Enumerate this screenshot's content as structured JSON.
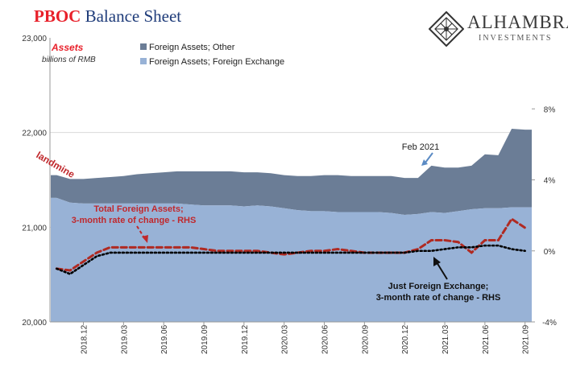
{
  "title": {
    "part1": "PBOC",
    "part2": "Balance Sheet"
  },
  "logo": {
    "brand": "ALHAMBRA",
    "subtitle": "INVESTMENTS",
    "icon": "diamond-lattice-icon"
  },
  "assets_title": "Assets",
  "units_label": "billions of RMB",
  "colors": {
    "foreign_other": "#6b7d96",
    "foreign_exchange": "#98b2d6",
    "total_rate": "#b02a22",
    "fx_rate": "#000000",
    "annotation_red": "#c0282c",
    "annotation_black": "#111111",
    "feb_arrow": "#5b8bc4"
  },
  "legend": [
    {
      "label": "Foreign Assets; Other",
      "color": "#6b7d96"
    },
    {
      "label": "Foreign Assets; Foreign Exchange",
      "color": "#98b2d6"
    }
  ],
  "annotations": {
    "landmine": "landmine",
    "feb": "Feb 2021",
    "total_line1": "Total Foreign Assets;",
    "total_line2": "3-month rate of change - RHS",
    "fx_line1": "Just Foreign Exchange;",
    "fx_line2": "3-month rate of change - RHS"
  },
  "chart_data": {
    "type": "area",
    "x_tick_labels": [
      "2018.12",
      "2019.03",
      "2019.06",
      "2019.09",
      "2019.12",
      "2020.03",
      "2020.06",
      "2020.09",
      "2020.12",
      "2021.03",
      "2021.06",
      "2021.09"
    ],
    "x": [
      "2018.10",
      "2018.11",
      "2018.12",
      "2019.01",
      "2019.02",
      "2019.03",
      "2019.04",
      "2019.05",
      "2019.06",
      "2019.07",
      "2019.08",
      "2019.09",
      "2019.10",
      "2019.11",
      "2019.12",
      "2020.01",
      "2020.02",
      "2020.03",
      "2020.04",
      "2020.05",
      "2020.06",
      "2020.07",
      "2020.08",
      "2020.09",
      "2020.10",
      "2020.11",
      "2020.12",
      "2021.01",
      "2021.02",
      "2021.03",
      "2021.04",
      "2021.05",
      "2021.06",
      "2021.07",
      "2021.08",
      "2021.09"
    ],
    "left_axis": {
      "ticks": [
        "20,000",
        "21,000",
        "22,000",
        "23,000"
      ],
      "ylim": [
        20000,
        23000
      ]
    },
    "right_axis": {
      "ticks": [
        "-4%",
        "0%",
        "4%",
        "8%"
      ],
      "ylim": [
        -4,
        12
      ]
    },
    "series": [
      {
        "name": "Foreign Assets; Foreign Exchange",
        "axis": "left",
        "stacked": true,
        "values": [
          21310,
          21260,
          21250,
          21250,
          21250,
          21250,
          21250,
          21250,
          21250,
          21250,
          21240,
          21230,
          21230,
          21230,
          21220,
          21230,
          21220,
          21200,
          21180,
          21170,
          21170,
          21160,
          21160,
          21160,
          21160,
          21150,
          21130,
          21140,
          21160,
          21150,
          21170,
          21190,
          21200,
          21200,
          21210,
          21210
        ]
      },
      {
        "name": "Foreign Assets; Other",
        "axis": "left",
        "stacked": true,
        "values": [
          240,
          250,
          260,
          270,
          280,
          290,
          310,
          320,
          330,
          340,
          350,
          360,
          360,
          360,
          360,
          350,
          350,
          350,
          360,
          370,
          380,
          390,
          380,
          380,
          380,
          390,
          390,
          380,
          490,
          480,
          460,
          460,
          570,
          560,
          830,
          820
        ]
      },
      {
        "name": "Total Foreign Assets; 3-month rate of change - RHS",
        "axis": "right",
        "style": "dashed",
        "values": [
          -1.0,
          -1.1,
          -0.6,
          -0.1,
          0.2,
          0.2,
          0.2,
          0.2,
          0.2,
          0.2,
          0.2,
          0.1,
          0.0,
          0.0,
          0.0,
          0.0,
          -0.1,
          -0.2,
          -0.1,
          0.0,
          0.0,
          0.1,
          0.0,
          -0.1,
          -0.1,
          -0.1,
          -0.1,
          0.1,
          0.6,
          0.6,
          0.5,
          -0.1,
          0.6,
          0.6,
          1.8,
          1.3
        ]
      },
      {
        "name": "Just Foreign Exchange; 3-month rate of change - RHS",
        "axis": "right",
        "style": "dotted",
        "values": [
          -1.0,
          -1.3,
          -0.8,
          -0.3,
          -0.1,
          -0.1,
          -0.1,
          -0.1,
          -0.1,
          -0.1,
          -0.1,
          -0.1,
          -0.1,
          -0.1,
          -0.1,
          -0.1,
          -0.1,
          -0.1,
          -0.1,
          -0.1,
          -0.1,
          -0.1,
          -0.1,
          -0.1,
          -0.1,
          -0.1,
          -0.1,
          0.0,
          0.0,
          0.1,
          0.2,
          0.2,
          0.3,
          0.3,
          0.1,
          0.0
        ]
      }
    ]
  }
}
